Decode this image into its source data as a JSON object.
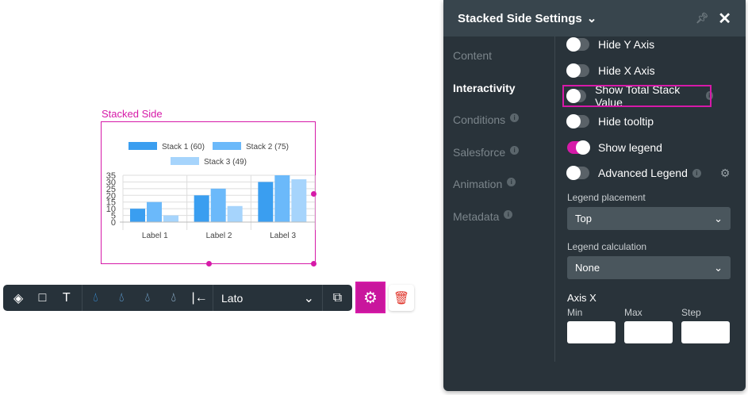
{
  "widget": {
    "title": "Stacked Side"
  },
  "chart_data": {
    "type": "bar",
    "categories": [
      "Label 1",
      "Label 2",
      "Label 3"
    ],
    "series": [
      {
        "name": "Stack 1 (60)",
        "values": [
          10,
          20,
          30
        ],
        "color": "#3a9ef0"
      },
      {
        "name": "Stack 2 (75)",
        "values": [
          15,
          25,
          35
        ],
        "color": "#6bb9fa"
      },
      {
        "name": "Stack 3 (49)",
        "values": [
          5,
          12,
          32
        ],
        "color": "#a6d4fc"
      }
    ],
    "yticks": [
      0,
      5,
      10,
      15,
      20,
      25,
      30,
      35
    ],
    "ylim": [
      0,
      35
    ],
    "legend": "top",
    "grid": true
  },
  "toolbar": {
    "font": "Lato"
  },
  "panel": {
    "title": "Stacked Side Settings",
    "nav": [
      "Content",
      "Interactivity",
      "Conditions",
      "Salesforce",
      "Animation",
      "Metadata"
    ],
    "toggles": [
      {
        "label": "Hide Y Axis",
        "on": false
      },
      {
        "label": "Hide X Axis",
        "on": false
      },
      {
        "label": "Show Total Stack Value",
        "on": false
      },
      {
        "label": "Hide tooltip",
        "on": false
      },
      {
        "label": "Show legend",
        "on": true
      },
      {
        "label": "Advanced Legend",
        "on": false
      }
    ],
    "legend_placement_label": "Legend placement",
    "legend_placement": "Top",
    "legend_calc_label": "Legend calculation",
    "legend_calc": "None",
    "axis_x": "Axis X",
    "min": "Min",
    "max": "Max",
    "step": "Step"
  }
}
